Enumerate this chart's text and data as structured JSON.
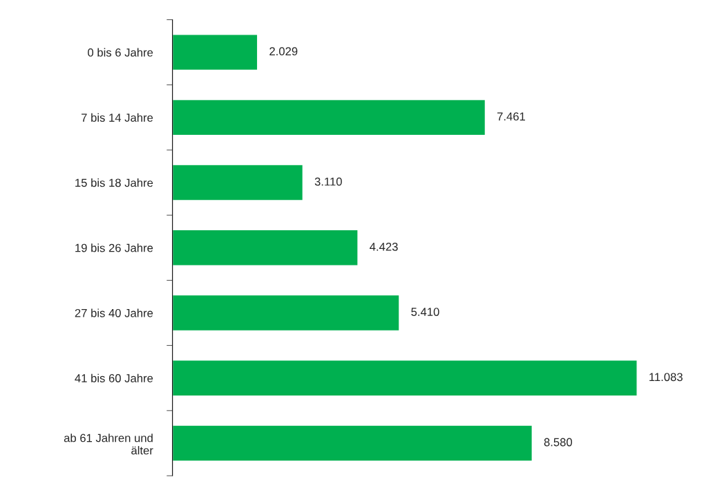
{
  "chart_data": {
    "type": "bar",
    "orientation": "horizontal",
    "categories": [
      "0 bis 6 Jahre",
      "7 bis 14 Jahre",
      "15 bis 18 Jahre",
      "19 bis 26 Jahre",
      "27 bis 40 Jahre",
      "41 bis 60 Jahre",
      "ab 61 Jahren und\nälter"
    ],
    "values": [
      2029,
      7461,
      3110,
      4423,
      5410,
      11083,
      8580
    ],
    "value_labels": [
      "2.029",
      "7.461",
      "3.110",
      "4.423",
      "5.410",
      "11.083",
      "8.580"
    ],
    "color": "#00b050",
    "grid": false,
    "legend": false
  }
}
